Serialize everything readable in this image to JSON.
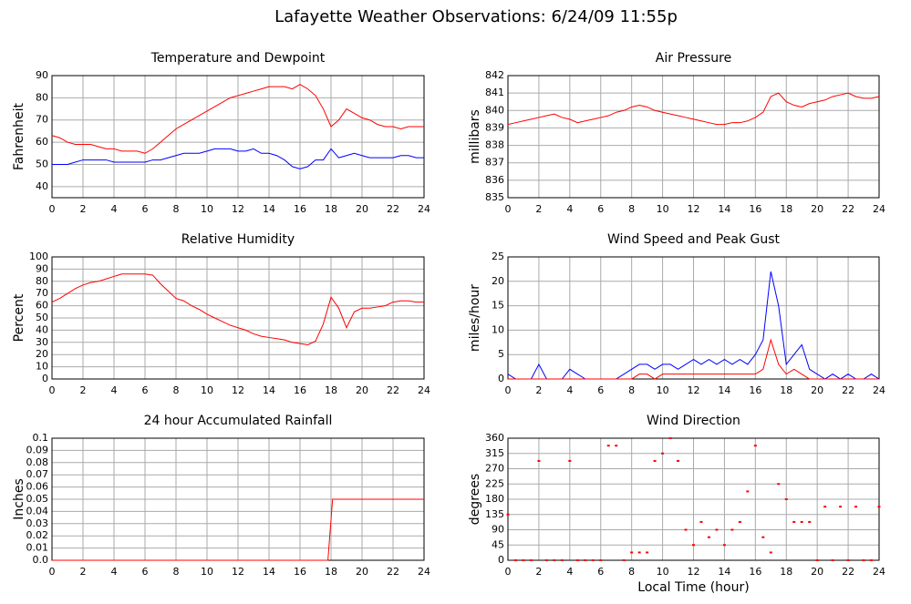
{
  "title": "Lafayette Weather Observations: 6/24/09 11:55p",
  "chart_data": [
    {
      "type": "line",
      "title": "Temperature and Dewpoint",
      "ylabel": "Fahrenheit",
      "xlim": [
        0,
        24
      ],
      "xticks": [
        0,
        2,
        4,
        6,
        8,
        10,
        12,
        14,
        16,
        18,
        20,
        22,
        24
      ],
      "ylim": [
        35,
        90
      ],
      "yticks": [
        40,
        50,
        60,
        70,
        80,
        90
      ],
      "x": [
        0,
        0.5,
        1,
        1.5,
        2,
        2.5,
        3,
        3.5,
        4,
        4.5,
        5,
        5.5,
        6,
        6.5,
        7,
        7.5,
        8,
        8.5,
        9,
        9.5,
        10,
        10.5,
        11,
        11.5,
        12,
        12.5,
        13,
        13.5,
        14,
        14.5,
        15,
        15.5,
        16,
        16.5,
        17,
        17.5,
        18,
        18.5,
        19,
        19.5,
        20,
        20.5,
        21,
        21.5,
        22,
        22.5,
        23,
        23.5,
        24
      ],
      "series": [
        {
          "color": "#ff0000",
          "values": [
            63,
            62,
            60,
            59,
            59,
            59,
            58,
            57,
            57,
            56,
            56,
            56,
            55,
            57,
            60,
            63,
            66,
            68,
            70,
            72,
            74,
            76,
            78,
            80,
            81,
            82,
            83,
            84,
            85,
            85,
            85,
            84,
            86,
            84,
            81,
            75,
            67,
            70,
            75,
            73,
            71,
            70,
            68,
            67,
            67,
            66,
            67,
            67,
            67
          ]
        },
        {
          "color": "#0000ff",
          "values": [
            50,
            50,
            50,
            51,
            52,
            52,
            52,
            52,
            51,
            51,
            51,
            51,
            51,
            52,
            52,
            53,
            54,
            55,
            55,
            55,
            56,
            57,
            57,
            57,
            56,
            56,
            57,
            55,
            55,
            54,
            52,
            49,
            48,
            49,
            52,
            52,
            57,
            53,
            54,
            55,
            54,
            53,
            53,
            53,
            53,
            54,
            54,
            53,
            53
          ]
        }
      ]
    },
    {
      "type": "line",
      "title": "Air Pressure",
      "ylabel": "millibars",
      "xlim": [
        0,
        24
      ],
      "xticks": [
        0,
        2,
        4,
        6,
        8,
        10,
        12,
        14,
        16,
        18,
        20,
        22,
        24
      ],
      "ylim": [
        835,
        842
      ],
      "yticks": [
        835,
        836,
        837,
        838,
        839,
        840,
        841,
        842
      ],
      "x": [
        0,
        0.5,
        1,
        1.5,
        2,
        2.5,
        3,
        3.5,
        4,
        4.5,
        5,
        5.5,
        6,
        6.5,
        7,
        7.5,
        8,
        8.5,
        9,
        9.5,
        10,
        10.5,
        11,
        11.5,
        12,
        12.5,
        13,
        13.5,
        14,
        14.5,
        15,
        15.5,
        16,
        16.5,
        17,
        17.5,
        18,
        18.5,
        19,
        19.5,
        20,
        20.5,
        21,
        21.5,
        22,
        22.5,
        23,
        23.5,
        24
      ],
      "series": [
        {
          "color": "#ff0000",
          "values": [
            839.2,
            839.3,
            839.4,
            839.5,
            839.6,
            839.7,
            839.8,
            839.6,
            839.5,
            839.3,
            839.4,
            839.5,
            839.6,
            839.7,
            839.9,
            840.0,
            840.2,
            840.3,
            840.2,
            840.0,
            839.9,
            839.8,
            839.7,
            839.6,
            839.5,
            839.4,
            839.3,
            839.2,
            839.2,
            839.3,
            839.3,
            839.4,
            839.6,
            839.9,
            840.8,
            841.0,
            840.5,
            840.3,
            840.2,
            840.4,
            840.5,
            840.6,
            840.8,
            840.9,
            841.0,
            840.8,
            840.7,
            840.7,
            840.8
          ]
        }
      ]
    },
    {
      "type": "line",
      "title": "Relative Humidity",
      "ylabel": "Percent",
      "xlim": [
        0,
        24
      ],
      "xticks": [
        0,
        2,
        4,
        6,
        8,
        10,
        12,
        14,
        16,
        18,
        20,
        22,
        24
      ],
      "ylim": [
        0,
        100
      ],
      "yticks": [
        0,
        10,
        20,
        30,
        40,
        50,
        60,
        70,
        80,
        90,
        100
      ],
      "x": [
        0,
        0.5,
        1,
        1.5,
        2,
        2.5,
        3,
        3.5,
        4,
        4.5,
        5,
        5.5,
        6,
        6.5,
        7,
        7.5,
        8,
        8.5,
        9,
        9.5,
        10,
        10.5,
        11,
        11.5,
        12,
        12.5,
        13,
        13.5,
        14,
        14.5,
        15,
        15.5,
        16,
        16.5,
        17,
        17.5,
        18,
        18.5,
        19,
        19.5,
        20,
        20.5,
        21,
        21.5,
        22,
        22.5,
        23,
        23.5,
        24
      ],
      "series": [
        {
          "color": "#ff0000",
          "values": [
            63,
            66,
            70,
            74,
            77,
            79,
            80,
            82,
            84,
            86,
            86,
            86,
            86,
            85,
            78,
            72,
            66,
            64,
            60,
            57,
            53,
            50,
            47,
            44,
            42,
            40,
            37,
            35,
            34,
            33,
            32,
            30,
            29,
            28,
            31,
            45,
            67,
            58,
            42,
            55,
            58,
            58,
            59,
            60,
            63,
            64,
            64,
            63,
            63
          ]
        }
      ]
    },
    {
      "type": "line",
      "title": "Wind Speed and Peak Gust",
      "ylabel": "miles/hour",
      "xlim": [
        0,
        24
      ],
      "xticks": [
        0,
        2,
        4,
        6,
        8,
        10,
        12,
        14,
        16,
        18,
        20,
        22,
        24
      ],
      "ylim": [
        0,
        25
      ],
      "yticks": [
        0,
        5,
        10,
        15,
        20,
        25
      ],
      "x": [
        0,
        0.5,
        1,
        1.5,
        2,
        2.5,
        3,
        3.5,
        4,
        4.5,
        5,
        5.5,
        6,
        6.5,
        7,
        7.5,
        8,
        8.5,
        9,
        9.5,
        10,
        10.5,
        11,
        11.5,
        12,
        12.5,
        13,
        13.5,
        14,
        14.5,
        15,
        15.5,
        16,
        16.5,
        17,
        17.5,
        18,
        18.5,
        19,
        19.5,
        20,
        20.5,
        21,
        21.5,
        22,
        22.5,
        23,
        23.5,
        24
      ],
      "series": [
        {
          "color": "#0000ff",
          "values": [
            1,
            0,
            0,
            0,
            3,
            0,
            0,
            0,
            2,
            1,
            0,
            0,
            0,
            0,
            0,
            1,
            2,
            3,
            3,
            2,
            3,
            3,
            2,
            3,
            4,
            3,
            4,
            3,
            4,
            3,
            4,
            3,
            5,
            8,
            22,
            15,
            3,
            5,
            7,
            2,
            1,
            0,
            1,
            0,
            1,
            0,
            0,
            1,
            0
          ]
        },
        {
          "color": "#ff0000",
          "values": [
            0,
            0,
            0,
            0,
            0,
            0,
            0,
            0,
            0,
            0,
            0,
            0,
            0,
            0,
            0,
            0,
            0,
            1,
            1,
            0,
            1,
            1,
            1,
            1,
            1,
            1,
            1,
            1,
            1,
            1,
            1,
            1,
            1,
            2,
            8,
            3,
            1,
            2,
            1,
            0,
            0,
            0,
            0,
            0,
            0,
            0,
            0,
            0,
            0
          ]
        }
      ]
    },
    {
      "type": "line",
      "title": "24 hour Accumulated Rainfall",
      "ylabel": "Inches",
      "xlim": [
        0,
        24
      ],
      "xticks": [
        0,
        2,
        4,
        6,
        8,
        10,
        12,
        14,
        16,
        18,
        20,
        22,
        24
      ],
      "ylim": [
        0,
        0.1
      ],
      "yticks": [
        {
          "value": 0,
          "label": "0.0"
        },
        0.01,
        0.02,
        0.03,
        0.04,
        0.05,
        0.06,
        0.07,
        0.08,
        0.09,
        0.1
      ],
      "x": [
        0,
        17.8,
        18.1,
        24
      ],
      "series": [
        {
          "color": "#ff0000",
          "values": [
            0,
            0,
            0.05,
            0.05
          ]
        }
      ]
    },
    {
      "type": "scatter",
      "title": "Wind Direction",
      "ylabel": "degrees",
      "xlabel": "Local Time (hour)",
      "xlim": [
        0,
        24
      ],
      "xticks": [
        0,
        2,
        4,
        6,
        8,
        10,
        12,
        14,
        16,
        18,
        20,
        22,
        24
      ],
      "ylim": [
        0,
        360
      ],
      "yticks": [
        0,
        45,
        90,
        135,
        180,
        225,
        270,
        315,
        360
      ],
      "x": [
        0,
        0.5,
        1,
        1.5,
        2,
        2.5,
        3,
        3.5,
        4,
        4.5,
        5,
        5.5,
        6,
        6.5,
        7,
        7.5,
        8,
        8.5,
        9,
        9.5,
        10,
        10.5,
        11,
        11.5,
        12,
        12.5,
        13,
        13.5,
        14,
        14.5,
        15,
        15.5,
        16,
        16.5,
        17,
        17.5,
        18,
        18.5,
        19,
        19.5,
        20,
        20.5,
        21,
        21.5,
        22,
        22.5,
        23,
        23.5,
        24
      ],
      "series": [
        {
          "color": "#ff0000",
          "values": [
            135,
            0,
            0,
            0,
            293,
            0,
            0,
            0,
            293,
            0,
            0,
            0,
            0,
            338,
            338,
            0,
            23,
            23,
            23,
            293,
            315,
            360,
            293,
            90,
            45,
            113,
            68,
            90,
            45,
            90,
            113,
            203,
            338,
            68,
            23,
            225,
            180,
            113,
            113,
            113,
            0,
            158,
            0,
            158,
            0,
            158,
            0,
            0,
            158
          ]
        }
      ]
    }
  ]
}
